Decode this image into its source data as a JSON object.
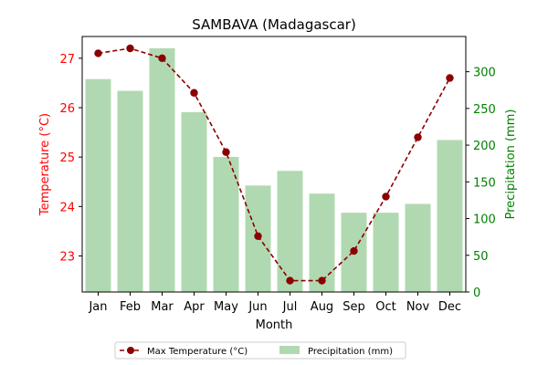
{
  "chart_data": {
    "type": "bar",
    "title": "SAMBAVA (Madagascar)",
    "xlabel": "Month",
    "categories": [
      "Jan",
      "Feb",
      "Mar",
      "Apr",
      "May",
      "Jun",
      "Jul",
      "Aug",
      "Sep",
      "Oct",
      "Nov",
      "Dec"
    ],
    "series": [
      {
        "name": "Max Temperature (°C)",
        "type": "line",
        "axis": "left",
        "color": "#8b0000",
        "values": [
          27.1,
          27.2,
          27.0,
          26.3,
          25.1,
          23.4,
          22.5,
          22.5,
          23.1,
          24.2,
          25.4,
          26.6
        ]
      },
      {
        "name": "Precipitation (mm)",
        "type": "bar",
        "axis": "right",
        "color": "#b1d9b1",
        "values": [
          290,
          274,
          332,
          245,
          184,
          145,
          165,
          134,
          108,
          108,
          120,
          207
        ]
      }
    ],
    "y_left": {
      "label": "Temperature (°C)",
      "color": "#ff0000",
      "lim": [
        22.27,
        27.44
      ],
      "ticks": [
        23,
        24,
        25,
        26,
        27
      ]
    },
    "y_right": {
      "label": "Precipitation (mm)",
      "color": "#008000",
      "lim": [
        0,
        348
      ],
      "ticks": [
        0,
        50,
        100,
        150,
        200,
        250,
        300
      ]
    },
    "grid": false,
    "legend": {
      "placement": "bottom-center"
    }
  }
}
